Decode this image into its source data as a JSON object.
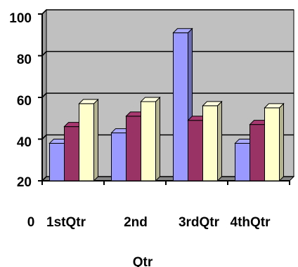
{
  "chart_data": {
    "type": "bar",
    "style": "3d-clustered-columns",
    "title": "",
    "xlabel": "Qtr",
    "ylabel": "",
    "ylim": [
      20,
      100
    ],
    "yticks": [
      20,
      40,
      60,
      80,
      100
    ],
    "ytick_labels": [
      "20",
      "40",
      "60",
      "80",
      "100"
    ],
    "categories": [
      "1stQtr",
      "2nd",
      "3rdQtr",
      "4thQtr"
    ],
    "category_prefix": "0",
    "grid": true,
    "legend": "none",
    "series": [
      {
        "color": "#9999ff",
        "values": [
          38,
          43,
          91,
          38
        ]
      },
      {
        "color": "#993366",
        "values": [
          46,
          51,
          49,
          47
        ]
      },
      {
        "color": "#ffffcc",
        "values": [
          57,
          58,
          56,
          55
        ]
      }
    ]
  },
  "colors": {
    "wall": "#c0c0c0",
    "grid": "#000000",
    "outline": "#000000"
  }
}
